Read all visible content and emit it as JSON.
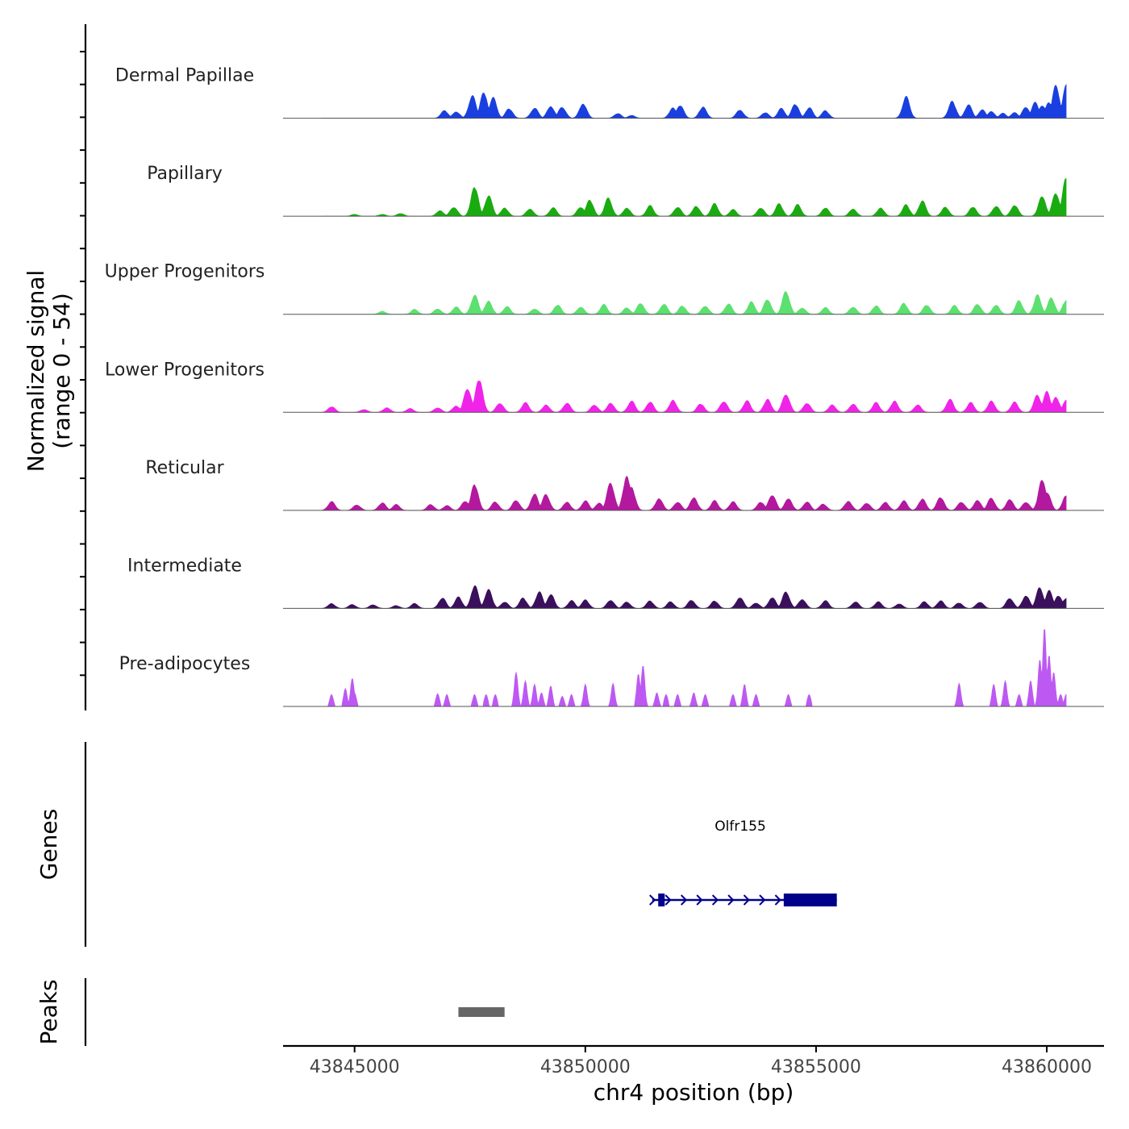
{
  "chart_data": {
    "type": "area",
    "title": "",
    "ylabel_line1": "Normalized signal",
    "ylabel_line2": "(range 0 - 54)",
    "y_range": [
      0,
      54
    ],
    "xlabel": "chr4 position (bp)",
    "x_range": [
      43843450,
      43861240
    ],
    "x_ticks": [
      43845000,
      43850000,
      43855000,
      43860000
    ],
    "x_tick_labels": [
      "43845000",
      "43850000",
      "43855000",
      "43860000"
    ],
    "tracks": [
      {
        "name": "Dermal Papillae",
        "color": "#1a3fe0",
        "peaks": [
          [
            43846950,
            8
          ],
          [
            43847200,
            7
          ],
          [
            43847550,
            24
          ],
          [
            43847800,
            28
          ],
          [
            43848000,
            21
          ],
          [
            43848350,
            10
          ],
          [
            43848900,
            11
          ],
          [
            43849250,
            13
          ],
          [
            43849500,
            12
          ],
          [
            43849950,
            16
          ],
          [
            43850700,
            5
          ],
          [
            43851000,
            3
          ],
          [
            43851900,
            11
          ],
          [
            43852050,
            14
          ],
          [
            43852550,
            12
          ],
          [
            43853350,
            9
          ],
          [
            43853900,
            6
          ],
          [
            43854250,
            10
          ],
          [
            43854550,
            15
          ],
          [
            43854850,
            11
          ],
          [
            43855200,
            8
          ],
          [
            43856950,
            22
          ],
          [
            43857950,
            18
          ],
          [
            43858300,
            14
          ],
          [
            43858600,
            9
          ],
          [
            43858800,
            7
          ],
          [
            43859050,
            5
          ],
          [
            43859300,
            6
          ],
          [
            43859550,
            12
          ],
          [
            43859750,
            16
          ],
          [
            43859900,
            14
          ],
          [
            43860050,
            17
          ],
          [
            43860200,
            35
          ],
          [
            43860420,
            33
          ]
        ]
      },
      {
        "name": "Papillary",
        "color": "#1aab10",
        "peaks": [
          [
            43845000,
            2
          ],
          [
            43845600,
            2
          ],
          [
            43846000,
            3
          ],
          [
            43846850,
            6
          ],
          [
            43847150,
            10
          ],
          [
            43847600,
            32
          ],
          [
            43847900,
            22
          ],
          [
            43848250,
            9
          ],
          [
            43848800,
            8
          ],
          [
            43849300,
            9
          ],
          [
            43849900,
            10
          ],
          [
            43850100,
            17
          ],
          [
            43850500,
            19
          ],
          [
            43850900,
            9
          ],
          [
            43851400,
            11
          ],
          [
            43852000,
            10
          ],
          [
            43852400,
            11
          ],
          [
            43852800,
            13
          ],
          [
            43853200,
            7
          ],
          [
            43853800,
            9
          ],
          [
            43854200,
            13
          ],
          [
            43854600,
            12
          ],
          [
            43855200,
            9
          ],
          [
            43855800,
            8
          ],
          [
            43856400,
            9
          ],
          [
            43856950,
            12
          ],
          [
            43857300,
            16
          ],
          [
            43857800,
            10
          ],
          [
            43858400,
            10
          ],
          [
            43858900,
            11
          ],
          [
            43859300,
            12
          ],
          [
            43859900,
            22
          ],
          [
            43860200,
            25
          ],
          [
            43860420,
            40
          ]
        ]
      },
      {
        "name": "Upper Progenitors",
        "color": "#5ce070",
        "peaks": [
          [
            43845600,
            3
          ],
          [
            43846300,
            5
          ],
          [
            43846800,
            6
          ],
          [
            43847200,
            8
          ],
          [
            43847600,
            20
          ],
          [
            43847900,
            14
          ],
          [
            43848300,
            8
          ],
          [
            43848900,
            6
          ],
          [
            43849400,
            10
          ],
          [
            43849900,
            8
          ],
          [
            43850400,
            10
          ],
          [
            43850900,
            7
          ],
          [
            43851200,
            12
          ],
          [
            43851700,
            11
          ],
          [
            43852100,
            9
          ],
          [
            43852600,
            9
          ],
          [
            43853100,
            11
          ],
          [
            43853600,
            13
          ],
          [
            43853950,
            16
          ],
          [
            43854350,
            25
          ],
          [
            43854700,
            7
          ],
          [
            43855200,
            7
          ],
          [
            43855800,
            8
          ],
          [
            43856300,
            9
          ],
          [
            43856900,
            12
          ],
          [
            43857400,
            10
          ],
          [
            43858000,
            9
          ],
          [
            43858500,
            11
          ],
          [
            43858900,
            10
          ],
          [
            43859400,
            14
          ],
          [
            43859800,
            20
          ],
          [
            43860100,
            17
          ],
          [
            43860420,
            15
          ]
        ]
      },
      {
        "name": "Lower Progenitors",
        "color": "#f024e8",
        "peaks": [
          [
            43844500,
            6
          ],
          [
            43845200,
            3
          ],
          [
            43845700,
            5
          ],
          [
            43846200,
            4
          ],
          [
            43846800,
            5
          ],
          [
            43847200,
            7
          ],
          [
            43847450,
            26
          ],
          [
            43847700,
            36
          ],
          [
            43848150,
            10
          ],
          [
            43848700,
            10
          ],
          [
            43849150,
            8
          ],
          [
            43849600,
            10
          ],
          [
            43850200,
            8
          ],
          [
            43850550,
            10
          ],
          [
            43851000,
            12
          ],
          [
            43851400,
            11
          ],
          [
            43851900,
            13
          ],
          [
            43852500,
            9
          ],
          [
            43853000,
            12
          ],
          [
            43853500,
            12
          ],
          [
            43853950,
            14
          ],
          [
            43854350,
            20
          ],
          [
            43854800,
            10
          ],
          [
            43855350,
            8
          ],
          [
            43855800,
            9
          ],
          [
            43856300,
            10
          ],
          [
            43856700,
            12
          ],
          [
            43857200,
            8
          ],
          [
            43857900,
            14
          ],
          [
            43858350,
            10
          ],
          [
            43858800,
            12
          ],
          [
            43859300,
            11
          ],
          [
            43859800,
            18
          ],
          [
            43860000,
            22
          ],
          [
            43860200,
            16
          ],
          [
            43860420,
            12
          ]
        ]
      },
      {
        "name": "Reticular",
        "color": "#b3189f",
        "peaks": [
          [
            43844500,
            9
          ],
          [
            43845050,
            6
          ],
          [
            43845600,
            8
          ],
          [
            43845900,
            6
          ],
          [
            43846650,
            6
          ],
          [
            43847000,
            5
          ],
          [
            43847400,
            10
          ],
          [
            43847600,
            28
          ],
          [
            43848050,
            9
          ],
          [
            43848500,
            11
          ],
          [
            43848900,
            18
          ],
          [
            43849150,
            17
          ],
          [
            43849600,
            9
          ],
          [
            43850000,
            10
          ],
          [
            43850300,
            8
          ],
          [
            43850550,
            30
          ],
          [
            43850900,
            38
          ],
          [
            43851000,
            25
          ],
          [
            43851600,
            13
          ],
          [
            43852000,
            9
          ],
          [
            43852350,
            14
          ],
          [
            43852800,
            10
          ],
          [
            43853200,
            9
          ],
          [
            43853800,
            9
          ],
          [
            43854050,
            17
          ],
          [
            43854400,
            13
          ],
          [
            43854800,
            9
          ],
          [
            43855150,
            7
          ],
          [
            43855700,
            10
          ],
          [
            43856100,
            8
          ],
          [
            43856500,
            9
          ],
          [
            43856900,
            10
          ],
          [
            43857300,
            12
          ],
          [
            43857700,
            14
          ],
          [
            43858150,
            9
          ],
          [
            43858500,
            11
          ],
          [
            43858800,
            13
          ],
          [
            43859200,
            12
          ],
          [
            43859550,
            9
          ],
          [
            43859900,
            34
          ],
          [
            43860000,
            20
          ],
          [
            43860420,
            15
          ]
        ]
      },
      {
        "name": "Intermediate",
        "color": "#3a0f5c",
        "peaks": [
          [
            43844500,
            5
          ],
          [
            43844950,
            4
          ],
          [
            43845400,
            4
          ],
          [
            43845900,
            3
          ],
          [
            43846300,
            5
          ],
          [
            43846900,
            11
          ],
          [
            43847250,
            12
          ],
          [
            43847600,
            24
          ],
          [
            43847900,
            20
          ],
          [
            43848250,
            7
          ],
          [
            43848650,
            11
          ],
          [
            43849000,
            17
          ],
          [
            43849250,
            15
          ],
          [
            43849700,
            8
          ],
          [
            43850000,
            9
          ],
          [
            43850550,
            9
          ],
          [
            43850900,
            7
          ],
          [
            43851400,
            8
          ],
          [
            43851850,
            7
          ],
          [
            43852300,
            9
          ],
          [
            43852800,
            8
          ],
          [
            43853350,
            12
          ],
          [
            43853700,
            6
          ],
          [
            43854050,
            12
          ],
          [
            43854350,
            18
          ],
          [
            43854700,
            10
          ],
          [
            43855200,
            8
          ],
          [
            43855850,
            7
          ],
          [
            43856350,
            7
          ],
          [
            43856800,
            5
          ],
          [
            43857350,
            7
          ],
          [
            43857700,
            8
          ],
          [
            43858100,
            6
          ],
          [
            43858550,
            7
          ],
          [
            43859200,
            11
          ],
          [
            43859550,
            14
          ],
          [
            43859850,
            22
          ],
          [
            43860050,
            18
          ],
          [
            43860250,
            14
          ],
          [
            43860420,
            11
          ]
        ]
      },
      {
        "name": "Pre-adipocytes",
        "color": "#bd59f2",
        "peaks": [
          [
            43844500,
            14
          ],
          [
            43844800,
            21
          ],
          [
            43844950,
            33
          ],
          [
            43845000,
            16
          ],
          [
            43846800,
            15
          ],
          [
            43847000,
            14
          ],
          [
            43847600,
            14
          ],
          [
            43847850,
            14
          ],
          [
            43848050,
            14
          ],
          [
            43848500,
            40
          ],
          [
            43848700,
            30
          ],
          [
            43848900,
            26
          ],
          [
            43849050,
            16
          ],
          [
            43849250,
            24
          ],
          [
            43849500,
            12
          ],
          [
            43849700,
            14
          ],
          [
            43850000,
            26
          ],
          [
            43850600,
            27
          ],
          [
            43851150,
            38
          ],
          [
            43851250,
            48
          ],
          [
            43851550,
            16
          ],
          [
            43851750,
            14
          ],
          [
            43852000,
            14
          ],
          [
            43852350,
            16
          ],
          [
            43852600,
            14
          ],
          [
            43853200,
            14
          ],
          [
            43853450,
            26
          ],
          [
            43853700,
            14
          ],
          [
            43854400,
            14
          ],
          [
            43854850,
            14
          ],
          [
            43858100,
            27
          ],
          [
            43858850,
            26
          ],
          [
            43859100,
            30
          ],
          [
            43859400,
            14
          ],
          [
            43859650,
            30
          ],
          [
            43859850,
            55
          ],
          [
            43859950,
            92
          ],
          [
            43860050,
            60
          ],
          [
            43860150,
            40
          ],
          [
            43860300,
            14
          ],
          [
            43860420,
            14
          ]
        ]
      }
    ],
    "genes_label": "Genes",
    "gene": {
      "name": "Olfr155",
      "color": "#00008b",
      "start": 43851450,
      "end": 43855450,
      "exons": [
        [
          43851580,
          43851720
        ],
        [
          43854300,
          43855450
        ]
      ],
      "strand": "+"
    },
    "peaks_label": "Peaks",
    "peak_regions": [
      [
        43847250,
        43848250
      ]
    ],
    "peak_color": "#666666"
  }
}
